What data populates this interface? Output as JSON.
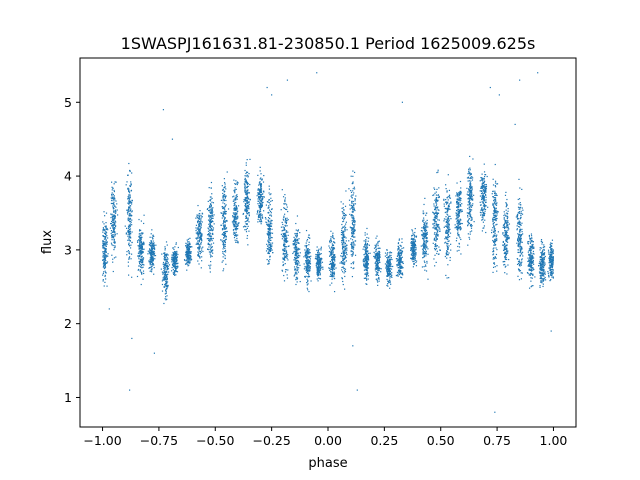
{
  "chart_data": {
    "type": "scatter",
    "title": "1SWASPJ161631.81-230850.1 Period 1625009.625s",
    "xlabel": "phase",
    "ylabel": "flux",
    "xlim": [
      -1.1,
      1.1
    ],
    "ylim": [
      0.6,
      5.6
    ],
    "xticks": [
      -1.0,
      -0.75,
      -0.5,
      -0.25,
      0.0,
      0.25,
      0.5,
      0.75,
      1.0
    ],
    "xtick_labels": [
      "−1.00",
      "−0.75",
      "−0.50",
      "−0.25",
      "0.00",
      "0.25",
      "0.50",
      "0.75",
      "1.00"
    ],
    "yticks": [
      1,
      2,
      3,
      4,
      5
    ],
    "ytick_labels": [
      "1",
      "2",
      "3",
      "4",
      "5"
    ],
    "grid": false,
    "legend": "none",
    "marker_color": "#1f77b4",
    "series": [
      {
        "x_range": [
          -1.0,
          1.0
        ],
        "clusters": [
          {
            "x": -0.99,
            "y_low": 2.3,
            "y_high": 3.7
          },
          {
            "x": -0.95,
            "y_low": 2.7,
            "y_high": 4.1
          },
          {
            "x": -0.88,
            "y_low": 2.4,
            "y_high": 4.4
          },
          {
            "x": -0.83,
            "y_low": 2.5,
            "y_high": 3.5
          },
          {
            "x": -0.78,
            "y_low": 2.6,
            "y_high": 3.3
          },
          {
            "x": -0.72,
            "y_low": 2.2,
            "y_high": 3.2
          },
          {
            "x": -0.68,
            "y_low": 2.6,
            "y_high": 3.1
          },
          {
            "x": -0.62,
            "y_low": 2.7,
            "y_high": 3.2
          },
          {
            "x": -0.57,
            "y_low": 2.7,
            "y_high": 3.7
          },
          {
            "x": -0.52,
            "y_low": 2.6,
            "y_high": 4.1
          },
          {
            "x": -0.46,
            "y_low": 2.5,
            "y_high": 4.2
          },
          {
            "x": -0.41,
            "y_low": 2.9,
            "y_high": 4.1
          },
          {
            "x": -0.36,
            "y_low": 3.0,
            "y_high": 4.3
          },
          {
            "x": -0.3,
            "y_low": 3.2,
            "y_high": 4.2
          },
          {
            "x": -0.26,
            "y_low": 2.5,
            "y_high": 4.0
          },
          {
            "x": -0.19,
            "y_low": 2.4,
            "y_high": 3.9
          },
          {
            "x": -0.14,
            "y_low": 2.4,
            "y_high": 3.5
          },
          {
            "x": -0.09,
            "y_low": 2.4,
            "y_high": 3.3
          },
          {
            "x": -0.04,
            "y_low": 2.5,
            "y_high": 3.1
          },
          {
            "x": 0.02,
            "y_low": 2.4,
            "y_high": 3.4
          },
          {
            "x": 0.07,
            "y_low": 2.4,
            "y_high": 3.8
          },
          {
            "x": 0.11,
            "y_low": 2.5,
            "y_high": 4.2
          },
          {
            "x": 0.17,
            "y_low": 2.4,
            "y_high": 3.3
          },
          {
            "x": 0.22,
            "y_low": 2.5,
            "y_high": 3.2
          },
          {
            "x": 0.27,
            "y_low": 2.4,
            "y_high": 3.1
          },
          {
            "x": 0.32,
            "y_low": 2.5,
            "y_high": 3.2
          },
          {
            "x": 0.38,
            "y_low": 2.7,
            "y_high": 3.3
          },
          {
            "x": 0.43,
            "y_low": 2.6,
            "y_high": 3.7
          },
          {
            "x": 0.48,
            "y_low": 2.7,
            "y_high": 4.1
          },
          {
            "x": 0.53,
            "y_low": 2.5,
            "y_high": 4.2
          },
          {
            "x": 0.58,
            "y_low": 2.9,
            "y_high": 4.1
          },
          {
            "x": 0.63,
            "y_low": 3.0,
            "y_high": 4.3
          },
          {
            "x": 0.69,
            "y_low": 3.2,
            "y_high": 4.2
          },
          {
            "x": 0.74,
            "y_low": 2.4,
            "y_high": 4.3
          },
          {
            "x": 0.79,
            "y_low": 2.5,
            "y_high": 3.9
          },
          {
            "x": 0.85,
            "y_low": 2.4,
            "y_high": 4.0
          },
          {
            "x": 0.9,
            "y_low": 2.4,
            "y_high": 3.3
          },
          {
            "x": 0.95,
            "y_low": 2.4,
            "y_high": 3.2
          },
          {
            "x": 0.99,
            "y_low": 2.5,
            "y_high": 3.2
          }
        ],
        "outliers": [
          {
            "x": -0.88,
            "y": 1.1
          },
          {
            "x": -0.87,
            "y": 1.8
          },
          {
            "x": -0.77,
            "y": 1.6
          },
          {
            "x": -0.73,
            "y": 4.9
          },
          {
            "x": -0.69,
            "y": 4.5
          },
          {
            "x": -0.27,
            "y": 5.2
          },
          {
            "x": -0.25,
            "y": 5.1
          },
          {
            "x": -0.18,
            "y": 5.3
          },
          {
            "x": -0.05,
            "y": 5.4
          },
          {
            "x": 0.11,
            "y": 1.7
          },
          {
            "x": 0.13,
            "y": 1.1
          },
          {
            "x": 0.33,
            "y": 5.0
          },
          {
            "x": 0.72,
            "y": 5.2
          },
          {
            "x": 0.74,
            "y": 0.8
          },
          {
            "x": 0.76,
            "y": 5.1
          },
          {
            "x": 0.85,
            "y": 5.3
          },
          {
            "x": 0.83,
            "y": 4.7
          },
          {
            "x": 0.93,
            "y": 5.4
          },
          {
            "x": -0.97,
            "y": 2.2
          },
          {
            "x": 0.99,
            "y": 1.9
          }
        ]
      }
    ]
  }
}
